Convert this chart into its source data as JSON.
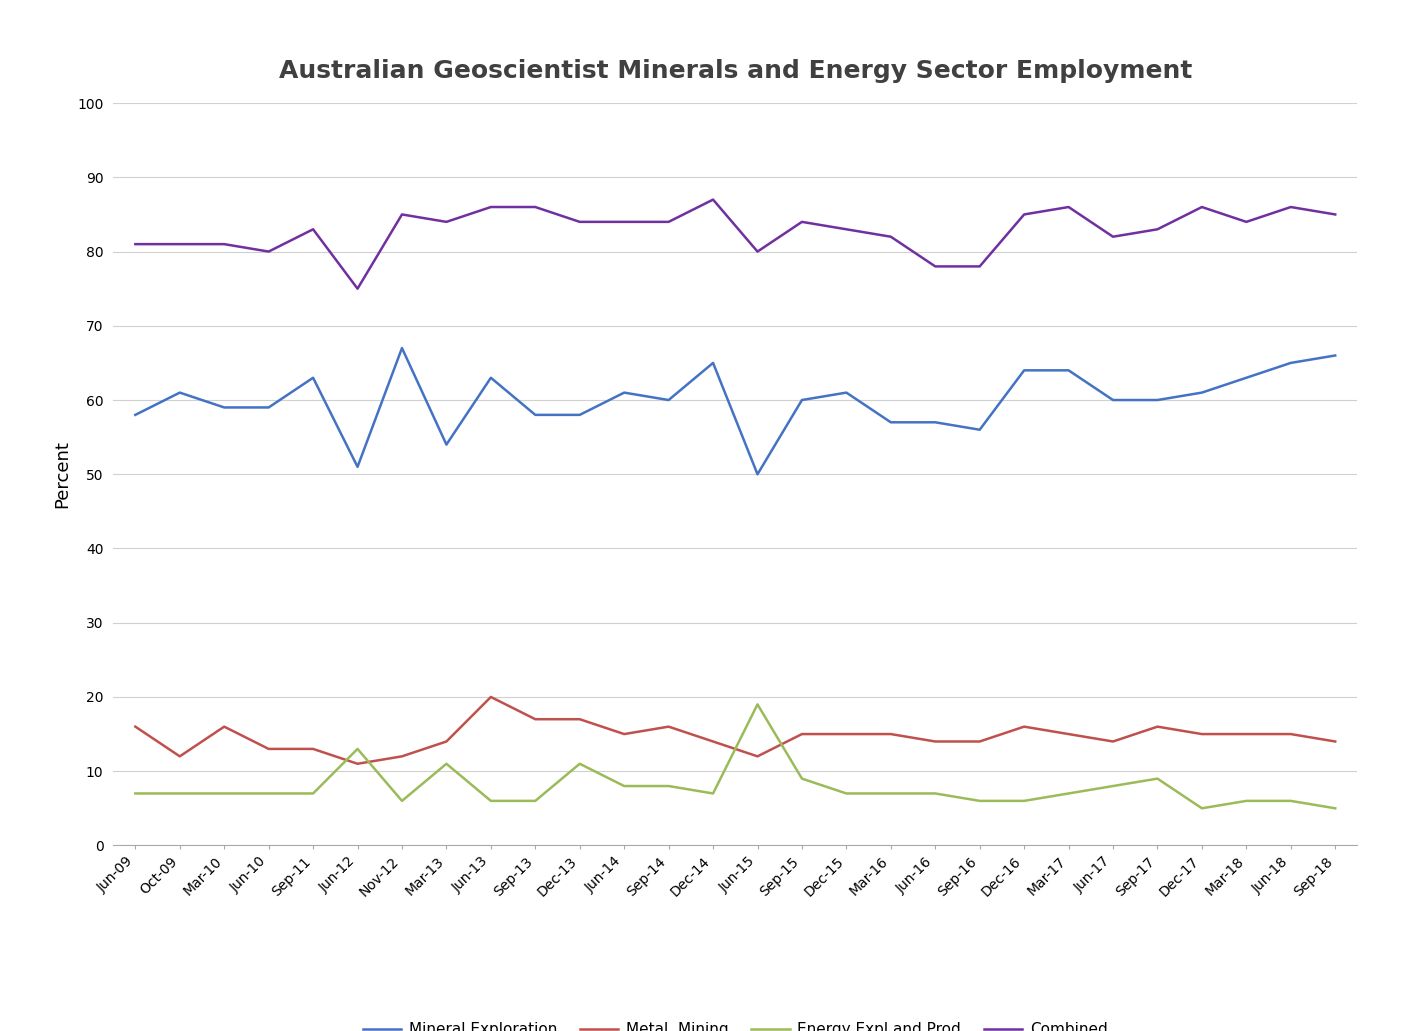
{
  "title": "Australian Geoscientist Minerals and Energy Sector Employment",
  "ylabel": "Percent",
  "x_labels": [
    "Jun-09",
    "Oct-09",
    "Mar-10",
    "Jun-10",
    "Sep-11",
    "Jun-12",
    "Nov-12",
    "Mar-13",
    "Jun-13",
    "Sep-13",
    "Dec-13",
    "Jun-14",
    "Sep-14",
    "Dec-14",
    "Jun-15",
    "Sep-15",
    "Dec-15",
    "Mar-16",
    "Jun-16",
    "Sep-16",
    "Dec-16",
    "Mar-17",
    "Jun-17",
    "Sep-17",
    "Dec-17",
    "Mar-18",
    "Jun-18",
    "Sep-18"
  ],
  "mineral_exploration": [
    58,
    61,
    59,
    59,
    63,
    51,
    67,
    54,
    63,
    58,
    58,
    61,
    60,
    65,
    50,
    60,
    61,
    57,
    57,
    56,
    64,
    64,
    60,
    60,
    61,
    63,
    65,
    66
  ],
  "metal_mining": [
    16,
    12,
    16,
    13,
    13,
    11,
    12,
    14,
    20,
    17,
    17,
    15,
    16,
    14,
    12,
    15,
    15,
    15,
    14,
    14,
    16,
    15,
    14,
    16,
    15,
    15,
    15,
    14
  ],
  "energy_expl_prod": [
    7,
    7,
    7,
    7,
    7,
    13,
    6,
    11,
    6,
    6,
    11,
    8,
    8,
    7,
    19,
    9,
    7,
    7,
    7,
    6,
    6,
    7,
    8,
    9,
    5,
    6,
    6,
    5
  ],
  "combined": [
    81,
    81,
    81,
    80,
    83,
    75,
    85,
    84,
    86,
    86,
    84,
    84,
    84,
    87,
    80,
    84,
    83,
    82,
    78,
    78,
    85,
    86,
    82,
    83,
    86,
    84,
    86,
    85
  ],
  "colors": {
    "mineral_exploration": "#4472C4",
    "metal_mining": "#C0504D",
    "energy_expl_prod": "#9BBB59",
    "combined": "#7030A0"
  },
  "legend_labels": [
    "Mineral Exploration",
    "Metal. Mining",
    "Energy Expl and Prod",
    "Combined"
  ],
  "ylim": [
    0,
    100
  ],
  "yticks": [
    0,
    10,
    20,
    30,
    40,
    50,
    60,
    70,
    80,
    90,
    100
  ],
  "background_color": "#FFFFFF",
  "grid_color": "#D0D0D0",
  "title_fontsize": 18,
  "tick_fontsize": 10,
  "ylabel_fontsize": 13,
  "linewidth": 1.8
}
